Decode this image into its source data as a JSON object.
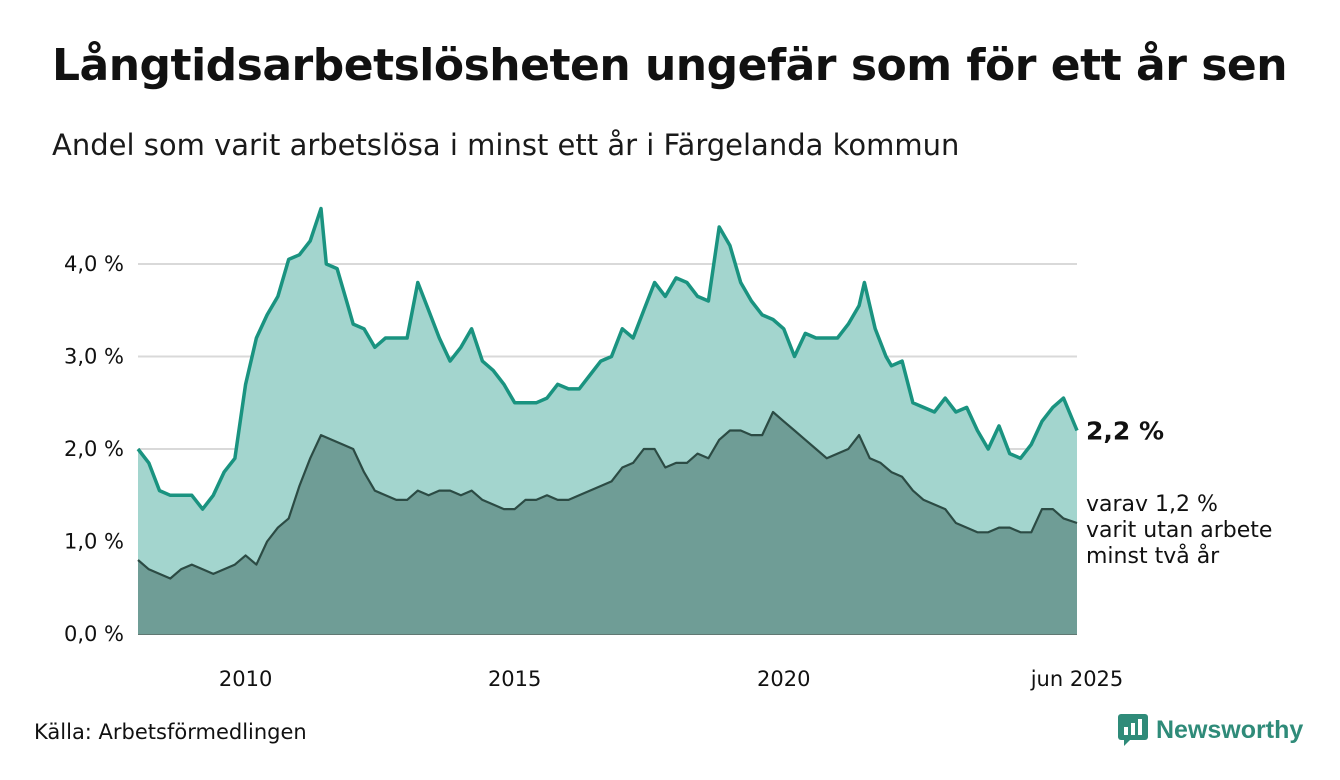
{
  "title": "Långtidsarbetslösheten ungefär som för ett år sen",
  "subtitle": "Andel som varit arbetslösa i minst ett år i Färgelanda kommun",
  "source": "Källa: Arbetsförmedlingen",
  "brand": "Newsworthy",
  "colors": {
    "total_line": "#1a9380",
    "total_fill": "#a3d5ce",
    "long_line": "#2c4b44",
    "long_fill": "#6f9d96",
    "grid": "#d9d9d9",
    "brand": "#2f8b79"
  },
  "chart_data": {
    "type": "area",
    "x_start": "2008-01",
    "x_end": "2025-06",
    "ylim": [
      0,
      4.6
    ],
    "grid": true,
    "y_ticks": [
      {
        "value": 0,
        "label": "0,0 %"
      },
      {
        "value": 1,
        "label": "1,0 %"
      },
      {
        "value": 2,
        "label": "2,0 %"
      },
      {
        "value": 3,
        "label": "3,0 %"
      },
      {
        "value": 4,
        "label": "4,0 %"
      }
    ],
    "x_ticks": [
      {
        "value": 2010,
        "label": "2010"
      },
      {
        "value": 2015,
        "label": "2015"
      },
      {
        "value": 2020,
        "label": "2020"
      },
      {
        "value": 2025.45,
        "label": "jun 2025"
      }
    ],
    "end_labels": {
      "total": "2,2 %",
      "long": [
        "varav 1,2 %",
        "varit utan arbete",
        "minst två år"
      ]
    },
    "series": [
      {
        "key": "total",
        "points": [
          [
            2008.0,
            2.0
          ],
          [
            2008.2,
            1.85
          ],
          [
            2008.4,
            1.55
          ],
          [
            2008.6,
            1.5
          ],
          [
            2008.8,
            1.5
          ],
          [
            2009.0,
            1.5
          ],
          [
            2009.2,
            1.35
          ],
          [
            2009.4,
            1.5
          ],
          [
            2009.6,
            1.75
          ],
          [
            2009.8,
            1.9
          ],
          [
            2010.0,
            2.7
          ],
          [
            2010.2,
            3.2
          ],
          [
            2010.4,
            3.45
          ],
          [
            2010.6,
            3.65
          ],
          [
            2010.8,
            4.05
          ],
          [
            2011.0,
            4.1
          ],
          [
            2011.2,
            4.25
          ],
          [
            2011.4,
            4.6
          ],
          [
            2011.5,
            4.0
          ],
          [
            2011.7,
            3.95
          ],
          [
            2011.9,
            3.55
          ],
          [
            2012.0,
            3.35
          ],
          [
            2012.2,
            3.3
          ],
          [
            2012.4,
            3.1
          ],
          [
            2012.6,
            3.2
          ],
          [
            2012.8,
            3.2
          ],
          [
            2013.0,
            3.2
          ],
          [
            2013.2,
            3.8
          ],
          [
            2013.4,
            3.5
          ],
          [
            2013.6,
            3.2
          ],
          [
            2013.8,
            2.95
          ],
          [
            2014.0,
            3.1
          ],
          [
            2014.2,
            3.3
          ],
          [
            2014.4,
            2.95
          ],
          [
            2014.6,
            2.85
          ],
          [
            2014.8,
            2.7
          ],
          [
            2015.0,
            2.5
          ],
          [
            2015.2,
            2.5
          ],
          [
            2015.4,
            2.5
          ],
          [
            2015.6,
            2.55
          ],
          [
            2015.8,
            2.7
          ],
          [
            2016.0,
            2.65
          ],
          [
            2016.2,
            2.65
          ],
          [
            2016.4,
            2.8
          ],
          [
            2016.6,
            2.95
          ],
          [
            2016.8,
            3.0
          ],
          [
            2017.0,
            3.3
          ],
          [
            2017.2,
            3.2
          ],
          [
            2017.4,
            3.5
          ],
          [
            2017.6,
            3.8
          ],
          [
            2017.8,
            3.65
          ],
          [
            2018.0,
            3.85
          ],
          [
            2018.2,
            3.8
          ],
          [
            2018.4,
            3.65
          ],
          [
            2018.6,
            3.6
          ],
          [
            2018.8,
            4.4
          ],
          [
            2019.0,
            4.2
          ],
          [
            2019.2,
            3.8
          ],
          [
            2019.4,
            3.6
          ],
          [
            2019.6,
            3.45
          ],
          [
            2019.8,
            3.4
          ],
          [
            2020.0,
            3.3
          ],
          [
            2020.2,
            3.0
          ],
          [
            2020.4,
            3.25
          ],
          [
            2020.6,
            3.2
          ],
          [
            2020.8,
            3.2
          ],
          [
            2021.0,
            3.2
          ],
          [
            2021.2,
            3.35
          ],
          [
            2021.4,
            3.55
          ],
          [
            2021.5,
            3.8
          ],
          [
            2021.7,
            3.3
          ],
          [
            2021.9,
            3.0
          ],
          [
            2022.0,
            2.9
          ],
          [
            2022.2,
            2.95
          ],
          [
            2022.4,
            2.5
          ],
          [
            2022.6,
            2.45
          ],
          [
            2022.8,
            2.4
          ],
          [
            2023.0,
            2.55
          ],
          [
            2023.2,
            2.4
          ],
          [
            2023.4,
            2.45
          ],
          [
            2023.6,
            2.2
          ],
          [
            2023.8,
            2.0
          ],
          [
            2024.0,
            2.25
          ],
          [
            2024.2,
            1.95
          ],
          [
            2024.4,
            1.9
          ],
          [
            2024.6,
            2.05
          ],
          [
            2024.8,
            2.3
          ],
          [
            2025.0,
            2.45
          ],
          [
            2025.2,
            2.55
          ],
          [
            2025.45,
            2.2
          ]
        ]
      },
      {
        "key": "long",
        "points": [
          [
            2008.0,
            0.8
          ],
          [
            2008.2,
            0.7
          ],
          [
            2008.4,
            0.65
          ],
          [
            2008.6,
            0.6
          ],
          [
            2008.8,
            0.7
          ],
          [
            2009.0,
            0.75
          ],
          [
            2009.2,
            0.7
          ],
          [
            2009.4,
            0.65
          ],
          [
            2009.6,
            0.7
          ],
          [
            2009.8,
            0.75
          ],
          [
            2010.0,
            0.85
          ],
          [
            2010.2,
            0.75
          ],
          [
            2010.4,
            1.0
          ],
          [
            2010.6,
            1.15
          ],
          [
            2010.8,
            1.25
          ],
          [
            2011.0,
            1.6
          ],
          [
            2011.2,
            1.9
          ],
          [
            2011.4,
            2.15
          ],
          [
            2011.6,
            2.1
          ],
          [
            2011.8,
            2.05
          ],
          [
            2012.0,
            2.0
          ],
          [
            2012.2,
            1.75
          ],
          [
            2012.4,
            1.55
          ],
          [
            2012.6,
            1.5
          ],
          [
            2012.8,
            1.45
          ],
          [
            2013.0,
            1.45
          ],
          [
            2013.2,
            1.55
          ],
          [
            2013.4,
            1.5
          ],
          [
            2013.6,
            1.55
          ],
          [
            2013.8,
            1.55
          ],
          [
            2014.0,
            1.5
          ],
          [
            2014.2,
            1.55
          ],
          [
            2014.4,
            1.45
          ],
          [
            2014.6,
            1.4
          ],
          [
            2014.8,
            1.35
          ],
          [
            2015.0,
            1.35
          ],
          [
            2015.2,
            1.45
          ],
          [
            2015.4,
            1.45
          ],
          [
            2015.6,
            1.5
          ],
          [
            2015.8,
            1.45
          ],
          [
            2016.0,
            1.45
          ],
          [
            2016.2,
            1.5
          ],
          [
            2016.4,
            1.55
          ],
          [
            2016.6,
            1.6
          ],
          [
            2016.8,
            1.65
          ],
          [
            2017.0,
            1.8
          ],
          [
            2017.2,
            1.85
          ],
          [
            2017.4,
            2.0
          ],
          [
            2017.6,
            2.0
          ],
          [
            2017.8,
            1.8
          ],
          [
            2018.0,
            1.85
          ],
          [
            2018.2,
            1.85
          ],
          [
            2018.4,
            1.95
          ],
          [
            2018.6,
            1.9
          ],
          [
            2018.8,
            2.1
          ],
          [
            2019.0,
            2.2
          ],
          [
            2019.2,
            2.2
          ],
          [
            2019.4,
            2.15
          ],
          [
            2019.6,
            2.15
          ],
          [
            2019.8,
            2.4
          ],
          [
            2020.0,
            2.3
          ],
          [
            2020.2,
            2.2
          ],
          [
            2020.4,
            2.1
          ],
          [
            2020.6,
            2.0
          ],
          [
            2020.8,
            1.9
          ],
          [
            2021.0,
            1.95
          ],
          [
            2021.2,
            2.0
          ],
          [
            2021.4,
            2.15
          ],
          [
            2021.6,
            1.9
          ],
          [
            2021.8,
            1.85
          ],
          [
            2022.0,
            1.75
          ],
          [
            2022.2,
            1.7
          ],
          [
            2022.4,
            1.55
          ],
          [
            2022.6,
            1.45
          ],
          [
            2022.8,
            1.4
          ],
          [
            2023.0,
            1.35
          ],
          [
            2023.2,
            1.2
          ],
          [
            2023.4,
            1.15
          ],
          [
            2023.6,
            1.1
          ],
          [
            2023.8,
            1.1
          ],
          [
            2024.0,
            1.15
          ],
          [
            2024.2,
            1.15
          ],
          [
            2024.4,
            1.1
          ],
          [
            2024.6,
            1.1
          ],
          [
            2024.8,
            1.35
          ],
          [
            2025.0,
            1.35
          ],
          [
            2025.2,
            1.25
          ],
          [
            2025.45,
            1.2
          ]
        ]
      }
    ]
  }
}
